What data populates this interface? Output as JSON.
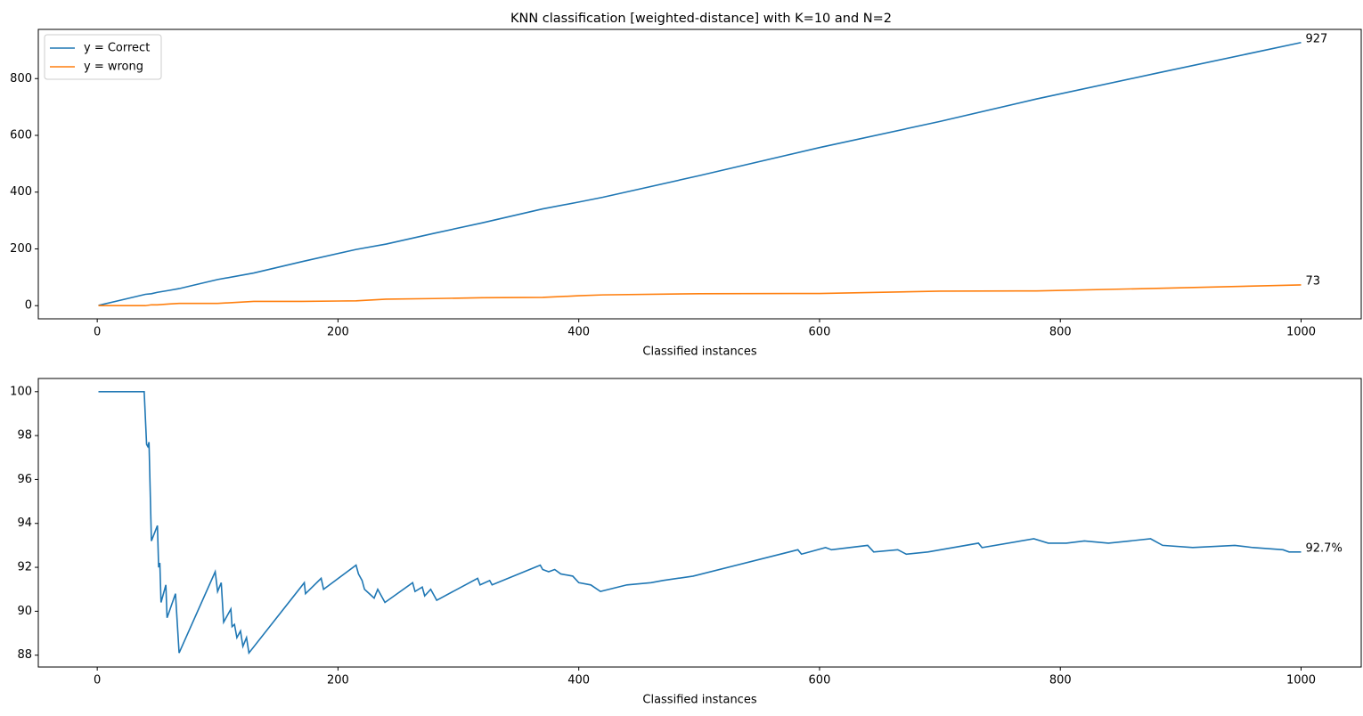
{
  "chart_data": [
    {
      "type": "line",
      "title": "KNN classification [weighted-distance] with K=10 and N=2",
      "xlabel": "Classified instances",
      "x": [
        1,
        40,
        45,
        50,
        60,
        68,
        80,
        100,
        130,
        170,
        215,
        240,
        280,
        320,
        370,
        400,
        420,
        500,
        600,
        700,
        780,
        880,
        1000
      ],
      "series": [
        {
          "name": "y = Correct",
          "color": "#1f77b4",
          "annotation": "927",
          "values": [
            1,
            40,
            42,
            47,
            54,
            60,
            72,
            92,
            115,
            155,
            198,
            217,
            255,
            292,
            341,
            365,
            382,
            458,
            557,
            649,
            728,
            819,
            927
          ]
        },
        {
          "name": "y = wrong",
          "color": "#ff7f0e",
          "annotation": "73",
          "values": [
            0,
            0,
            3,
            3,
            6,
            8,
            8,
            8,
            15,
            15,
            17,
            23,
            25,
            28,
            29,
            35,
            38,
            42,
            43,
            51,
            52,
            61,
            73
          ]
        }
      ],
      "xlim": [
        -48.95,
        1049.95
      ],
      "xticks": [
        0,
        200,
        400,
        600,
        800,
        1000
      ],
      "ylim": [
        -46.35,
        973.35
      ],
      "yticks": [
        0,
        200,
        400,
        600,
        800
      ],
      "legend": "upper left"
    },
    {
      "type": "line",
      "xlabel": "Classified instances",
      "color": "#1f77b4",
      "annotation": "92.7%",
      "x": [
        1,
        39,
        41,
        42,
        43,
        45,
        50,
        51,
        52,
        53,
        57,
        58,
        65,
        68,
        98,
        100,
        103,
        105,
        111,
        112,
        114,
        116,
        119,
        121,
        124,
        126,
        172,
        173,
        186,
        188,
        215,
        217,
        220,
        222,
        226,
        230,
        233,
        239,
        262,
        264,
        270,
        272,
        277,
        282,
        316,
        318,
        326,
        328,
        368,
        370,
        375,
        380,
        385,
        395,
        400,
        410,
        418,
        440,
        460,
        470,
        495,
        582,
        585,
        605,
        610,
        640,
        645,
        665,
        672,
        690,
        732,
        735,
        778,
        790,
        805,
        820,
        840,
        875,
        885,
        910,
        945,
        960,
        985,
        990,
        1000
      ],
      "values": [
        100,
        100,
        97.6,
        97.5,
        97.7,
        93.2,
        93.9,
        92.0,
        92.2,
        90.4,
        91.2,
        89.7,
        90.8,
        88.1,
        91.8,
        90.9,
        91.3,
        89.5,
        90.1,
        89.3,
        89.4,
        88.8,
        89.1,
        88.4,
        88.8,
        88.1,
        91.3,
        90.8,
        91.5,
        91.0,
        92.1,
        91.7,
        91.4,
        91.0,
        90.8,
        90.6,
        91.0,
        90.4,
        91.3,
        90.9,
        91.1,
        90.7,
        91.0,
        90.5,
        91.5,
        91.2,
        91.4,
        91.2,
        92.1,
        91.9,
        91.8,
        91.9,
        91.7,
        91.6,
        91.3,
        91.2,
        90.9,
        91.2,
        91.3,
        91.4,
        91.6,
        92.8,
        92.6,
        92.9,
        92.8,
        93.0,
        92.7,
        92.8,
        92.6,
        92.7,
        93.1,
        92.9,
        93.3,
        93.1,
        93.1,
        93.2,
        93.1,
        93.3,
        93.0,
        92.9,
        93.0,
        92.9,
        92.8,
        92.7,
        92.7
      ],
      "xlim": [
        -48.95,
        1049.95
      ],
      "xticks": [
        0,
        200,
        400,
        600,
        800,
        1000
      ],
      "ylim": [
        87.46,
        100.6
      ],
      "yticks": [
        88,
        90,
        92,
        94,
        96,
        98,
        100
      ]
    }
  ]
}
